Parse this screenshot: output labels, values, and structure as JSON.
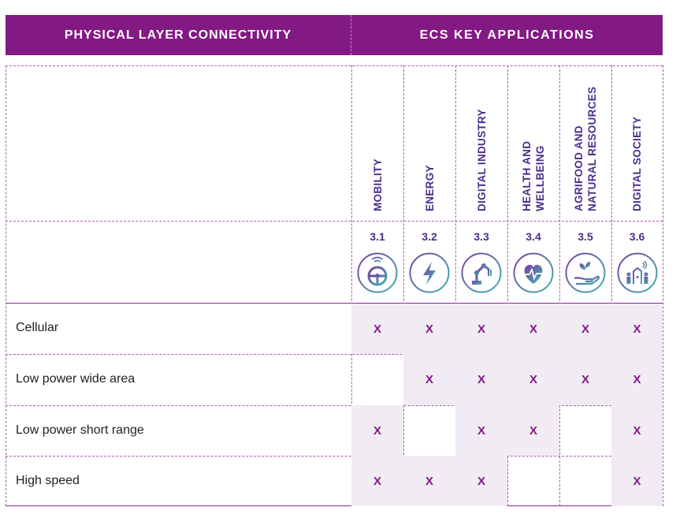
{
  "header": {
    "left": "PHYSICAL LAYER CONNECTIVITY",
    "right": "ECS KEY APPLICATIONS"
  },
  "columns": [
    {
      "label": "MOBILITY",
      "number": "3.1",
      "icon": "steering-wheel-icon"
    },
    {
      "label": "ENERGY",
      "number": "3.2",
      "icon": "lightning-bolt-icon"
    },
    {
      "label": "DIGITAL INDUSTRY",
      "number": "3.3",
      "icon": "robot-arm-icon"
    },
    {
      "label": "HEALTH AND\nWELLBEING",
      "number": "3.4",
      "icon": "heart-pulse-icon"
    },
    {
      "label": "AGRIFOOD AND\nNATURAL RESOURCES",
      "number": "3.5",
      "icon": "plant-hand-icon"
    },
    {
      "label": "DIGITAL SOCIETY",
      "number": "3.6",
      "icon": "people-city-icon"
    }
  ],
  "rows": [
    {
      "label": "Cellular",
      "cells": [
        "X",
        "X",
        "X",
        "X",
        "X",
        "X"
      ]
    },
    {
      "label": "Low power wide area",
      "cells": [
        "",
        "X",
        "X",
        "X",
        "X",
        "X"
      ]
    },
    {
      "label": "Low power short range",
      "cells": [
        "X",
        "",
        "X",
        "X",
        "",
        "X"
      ]
    },
    {
      "label": "High speed",
      "cells": [
        "X",
        "X",
        "X",
        "",
        "",
        "X"
      ]
    }
  ],
  "colors": {
    "header_bg": "#831a84",
    "mark": "#831a84",
    "header_text": "#4b2d8e",
    "cell_bg": "#f1ebf4",
    "icon_gradient": [
      "#7b3fa0",
      "#3fb3b0"
    ]
  }
}
